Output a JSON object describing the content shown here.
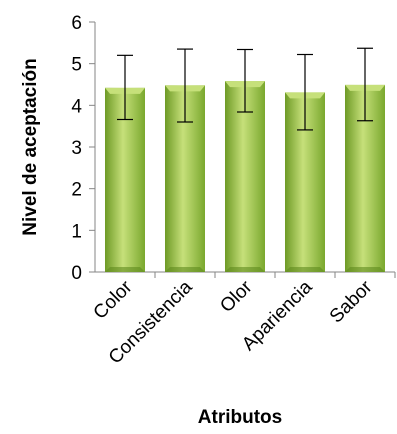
{
  "chart_data": {
    "type": "bar",
    "title": "",
    "xlabel": "Atributos",
    "ylabel": "Nivel de aceptación",
    "categories": [
      "Color",
      "Consistencia",
      "Olor",
      "Apariencia",
      "Sabor"
    ],
    "values": [
      4.42,
      4.48,
      4.58,
      4.31,
      4.49
    ],
    "error_low": [
      3.66,
      3.6,
      3.84,
      3.41,
      3.63
    ],
    "error_high": [
      5.2,
      5.35,
      5.34,
      5.22,
      5.37
    ],
    "ylim": [
      0,
      6
    ],
    "yticks": [
      "0",
      "1",
      "2",
      "3",
      "4",
      "5",
      "6"
    ],
    "grid": false,
    "legend": "none",
    "bar_color": "#8cbf3c",
    "bar_color_light": "#c6e07a",
    "bar_color_dark": "#5f8a1e"
  }
}
